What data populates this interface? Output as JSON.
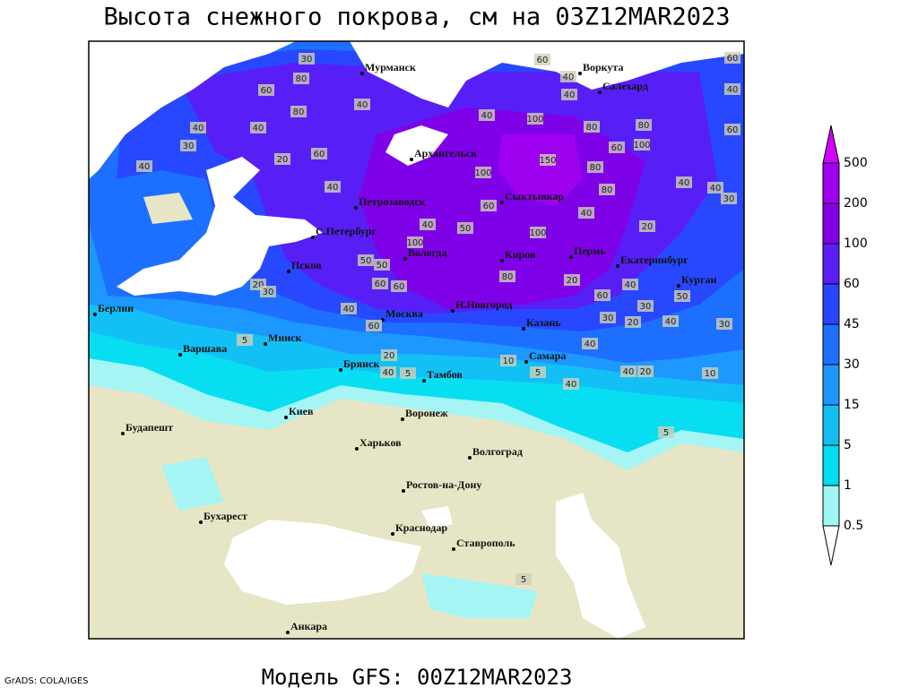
{
  "title": "Высота снежного покрова, см на 03Z12MAR2023",
  "footer": "Модель GFS: 00Z12MAR2023",
  "credit": "GrADS: COLA/IGES",
  "legend": {
    "levels": [
      500,
      200,
      100,
      60,
      45,
      30,
      15,
      5,
      1,
      0.5
    ],
    "colors": [
      "#d200ff",
      "#a000f0",
      "#8200e6",
      "#5a1ef5",
      "#2846ff",
      "#1e6eff",
      "#1e96ff",
      "#14bef5",
      "#00dcf0",
      "#a0f5f5",
      "#ffffff"
    ]
  },
  "cities": [
    "Мурманск",
    "Воркута",
    "Салехард",
    "Архангельск",
    "Петрозаводск",
    "Сыктывкар",
    "С.Петербург",
    "Вологда",
    "Киров",
    "Пермь",
    "Екатеринбург",
    "Курган",
    "Псков",
    "Берлин",
    "Москва",
    "Н.Новгород",
    "Казань",
    "Минск",
    "Варшава",
    "Брянск",
    "Тамбов",
    "Самара",
    "Киев",
    "Воронеж",
    "Будапешт",
    "Харьков",
    "Волгоград",
    "Ростов-на-Дону",
    "Бухарест",
    "Краснодар",
    "Ставрополь",
    "Анкара"
  ],
  "contour_labels": [
    30,
    80,
    60,
    40,
    30,
    40,
    80,
    40,
    20,
    60,
    40,
    40,
    60,
    40,
    40,
    100,
    40,
    80,
    80,
    100,
    60,
    60,
    40,
    60,
    150,
    100,
    80,
    80,
    40,
    40,
    30,
    40,
    60,
    20,
    100,
    50,
    40,
    100,
    80,
    20,
    60,
    40,
    50,
    30,
    30,
    20,
    40,
    30,
    40,
    50,
    60,
    60,
    50,
    20,
    30,
    60,
    5,
    20,
    40,
    5,
    10,
    5,
    40,
    40,
    20,
    10,
    5,
    40,
    5
  ]
}
